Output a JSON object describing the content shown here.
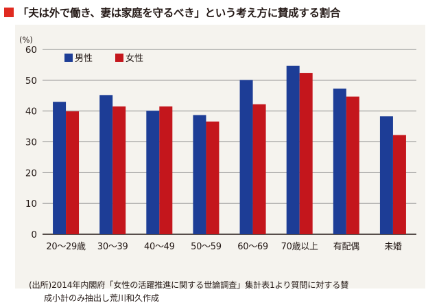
{
  "title": "「夫は外で働き、妻は家庭を守るべき」という考え方に賛成する割合",
  "chart_data": {
    "type": "bar",
    "title": "「夫は外で働き、妻は家庭を守るべき」という考え方に賛成する割合",
    "ylabel": "(%)",
    "ylim": [
      0,
      60
    ],
    "yticks": [
      0,
      10,
      20,
      30,
      40,
      50,
      60
    ],
    "grid": true,
    "legend_position": "top-left",
    "categories": [
      "20～29歳",
      "30～39",
      "40～49",
      "50～59",
      "60～69",
      "70歳以上",
      "有配偶",
      "未婚"
    ],
    "series": [
      {
        "name": "男性",
        "color": "#1d3d96",
        "values": [
          43.0,
          45.2,
          40.1,
          38.7,
          50.1,
          54.7,
          47.3,
          38.3
        ]
      },
      {
        "name": "女性",
        "color": "#c4161c",
        "values": [
          39.9,
          41.5,
          41.5,
          36.6,
          42.2,
          52.4,
          44.7,
          32.2
        ]
      }
    ]
  },
  "note_line1": "(出所)2014年内閣府「女性の活躍推進に関する世論調査」集計表1より質問に対する賛",
  "note_line2": "成小計のみ抽出し荒川和久作成"
}
